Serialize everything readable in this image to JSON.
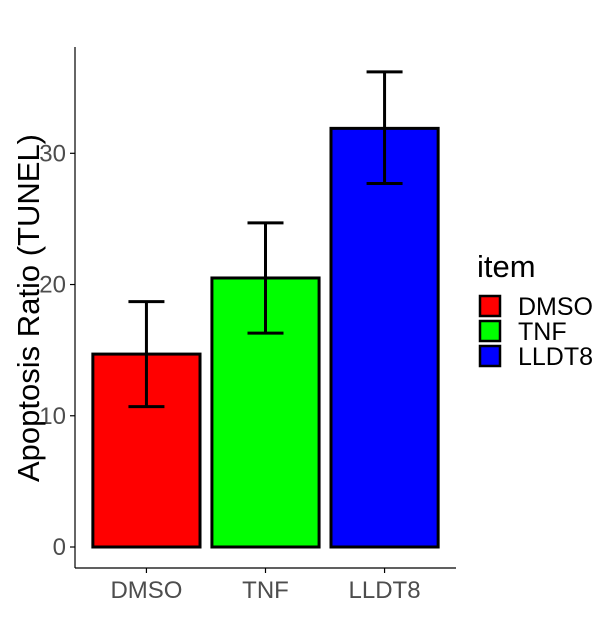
{
  "chart_data": {
    "type": "bar",
    "title": "",
    "xlabel": "",
    "ylabel": "Apoptosis Ratio (TUNEL)",
    "categories": [
      "DMSO",
      "TNF",
      "LLDT8"
    ],
    "values": [
      14.7,
      20.5,
      31.9
    ],
    "error_low": [
      10.7,
      16.3,
      27.7
    ],
    "error_high": [
      18.7,
      24.7,
      36.2
    ],
    "colors": [
      "#FF0000",
      "#00FF00",
      "#0000FF"
    ],
    "ylim": [
      -1.6,
      38.1
    ],
    "yticks": [
      0,
      10,
      20,
      30
    ],
    "ytick_labels": [
      "0",
      "10",
      "20",
      "30"
    ],
    "grid": false,
    "legend": {
      "title": "item",
      "placement": "right",
      "items": [
        {
          "label": "DMSO",
          "color": "#FF0000"
        },
        {
          "label": "TNF",
          "color": "#00FF00"
        },
        {
          "label": "LLDT8",
          "color": "#0000FF"
        }
      ]
    }
  }
}
